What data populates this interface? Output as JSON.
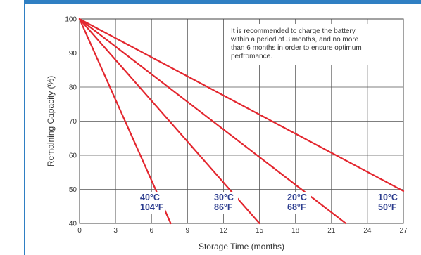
{
  "chart_data": {
    "type": "line",
    "title": "",
    "xlabel": "Storage Time (months)",
    "ylabel": "Remaining Capacity (%)",
    "xlim": [
      0,
      27
    ],
    "ylim": [
      40,
      100
    ],
    "x_ticks": [
      "0",
      "3",
      "6",
      "9",
      "12",
      "15",
      "18",
      "21",
      "24",
      "27"
    ],
    "y_ticks": [
      "40",
      "50",
      "60",
      "70",
      "80",
      "90",
      "100"
    ],
    "grid": true,
    "line_color": "#e3262e",
    "series": [
      {
        "name": "40°C 104°F",
        "celsius": "40°C",
        "fahrenheit": "104°F",
        "x": [
          0,
          7.6
        ],
        "y": [
          100,
          40
        ]
      },
      {
        "name": "30°C 86°F",
        "celsius": "30°C",
        "fahrenheit": "86°F",
        "x": [
          0,
          15.0
        ],
        "y": [
          100,
          40
        ]
      },
      {
        "name": "20°C 68°F",
        "celsius": "20°C",
        "fahrenheit": "68°F",
        "x": [
          0,
          22.2
        ],
        "y": [
          100,
          40
        ]
      },
      {
        "name": "10°C 50°F",
        "celsius": "10°C",
        "fahrenheit": "50°F",
        "x": [
          0,
          27.0
        ],
        "y": [
          100,
          49.5
        ]
      }
    ],
    "annotation": {
      "lines": [
        "It is recommended to charge the battery",
        "within a period of 3 months, and no more",
        "than 6 months in order to ensure optimum",
        "perfromance."
      ]
    },
    "label_color": "#2b3c8e",
    "frame_color": "#2f7fc3"
  }
}
